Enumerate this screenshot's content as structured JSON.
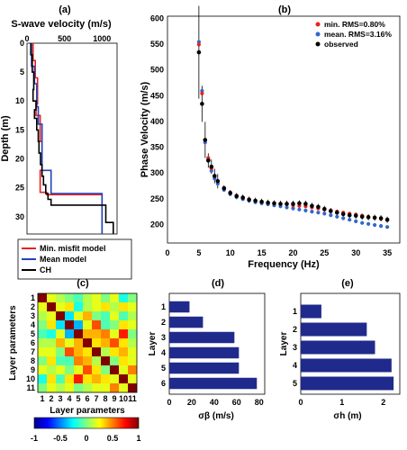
{
  "chart_data": [
    {
      "panel": "(a)",
      "type": "line",
      "title": "S-wave velocity (m/s)",
      "xlabel": "",
      "ylabel": "Depth (m)",
      "xlim": [
        0,
        1200
      ],
      "ylim": [
        0,
        33
      ],
      "xticks": [
        "0",
        "500",
        "1000"
      ],
      "yticks": [
        "0",
        "5",
        "10",
        "15",
        "20",
        "25",
        "30"
      ],
      "legend_position": "bottom",
      "series": [
        {
          "name": "Min. misfit model",
          "color": "#e8211f",
          "x": [
            80,
            80,
            110,
            110,
            140,
            140,
            120,
            120,
            175,
            175,
            200,
            200,
            175,
            175,
            260,
            260,
            1000,
            1000
          ],
          "y": [
            0,
            3,
            3,
            6,
            6,
            10.5,
            10.5,
            12.5,
            12.5,
            17,
            17,
            22,
            22,
            25.8,
            25.8,
            26.2,
            26.2,
            33
          ]
        },
        {
          "name": "Mean model",
          "color": "#2244bb",
          "x": [
            60,
            60,
            100,
            100,
            130,
            130,
            150,
            150,
            200,
            200,
            320,
            320,
            1000,
            1000
          ],
          "y": [
            0,
            4,
            4,
            7,
            7,
            11,
            11,
            14,
            14,
            22,
            22,
            26,
            26,
            33
          ]
        },
        {
          "name": "CH",
          "color": "#000000",
          "x": [
            50,
            50,
            70,
            70,
            90,
            90,
            80,
            80,
            120,
            120,
            100,
            100,
            130,
            130,
            150,
            150,
            160,
            160,
            180,
            180,
            200,
            200,
            220,
            220,
            250,
            250,
            280,
            280,
            320,
            320,
            1050,
            1050,
            1150,
            1150
          ],
          "y": [
            0,
            2,
            2,
            5,
            5,
            8,
            8,
            10,
            10,
            11.5,
            11.5,
            13,
            13,
            15,
            15,
            17,
            17,
            19,
            19,
            21,
            21,
            23,
            23,
            24.5,
            24.5,
            26,
            26,
            27,
            27,
            28,
            28,
            31,
            31,
            33
          ]
        }
      ]
    },
    {
      "panel": "(b)",
      "type": "scatter",
      "xlabel": "Frequency (Hz)",
      "ylabel": "Phase Velocity (m/s)",
      "xlim": [
        0,
        37
      ],
      "ylim": [
        160,
        600
      ],
      "xticks": [
        "0",
        "5",
        "10",
        "15",
        "20",
        "25",
        "30",
        "35"
      ],
      "yticks": [
        "200",
        "250",
        "300",
        "350",
        "400",
        "450",
        "500",
        "550",
        "600"
      ],
      "legend_position": "top-right",
      "x": [
        5,
        5.5,
        6,
        6.5,
        7,
        7.5,
        8,
        9,
        10,
        11,
        12,
        13,
        14,
        15,
        16,
        17,
        18,
        19,
        20,
        21,
        22,
        23,
        24,
        25,
        26,
        27,
        28,
        29,
        30,
        31,
        32,
        33,
        34,
        35
      ],
      "series": [
        {
          "name": "min. RMS=0.80%",
          "color": "#e8211f",
          "values": [
            545,
            450,
            360,
            325,
            305,
            290,
            280,
            267,
            258,
            252,
            248,
            245,
            242,
            240,
            238,
            237,
            236,
            235,
            233,
            232,
            231,
            229,
            227,
            225,
            223,
            221,
            219,
            217,
            215,
            213,
            211,
            209,
            207,
            206
          ]
        },
        {
          "name": "mean. RMS=3.16%",
          "color": "#3366cc",
          "values": [
            550,
            455,
            355,
            322,
            300,
            285,
            275,
            263,
            255,
            249,
            245,
            242,
            239,
            237,
            235,
            233,
            231,
            229,
            227,
            225,
            223,
            221,
            219,
            217,
            214,
            211,
            208,
            205,
            202,
            199,
            197,
            195,
            193,
            191
          ]
        },
        {
          "name": "observed",
          "color": "#000000",
          "values": [
            530,
            430,
            360,
            320,
            308,
            290,
            280,
            266,
            257,
            251,
            248,
            244,
            242,
            240,
            238,
            237,
            236,
            236,
            236,
            237,
            236,
            232,
            230,
            226,
            222,
            219,
            216,
            214,
            213,
            211,
            210,
            209,
            208,
            205
          ]
        }
      ]
    },
    {
      "panel": "(c)",
      "type": "heatmap",
      "xlabel": "Layer parameters",
      "ylabel": "Layer parameters",
      "xticks": [
        "1",
        "2",
        "3",
        "4",
        "5",
        "6",
        "7",
        "8",
        "9",
        "10",
        "11"
      ],
      "yticks": [
        "1",
        "2",
        "3",
        "4",
        "5",
        "6",
        "7",
        "8",
        "9",
        "10",
        "11"
      ],
      "colorbar_ticks": [
        "-1",
        "-0.5",
        "0",
        "0.5",
        "1"
      ],
      "zlim": [
        -1,
        1
      ],
      "values": [
        [
          1.0,
          0.2,
          0.1,
          0.0,
          -0.1,
          0.1,
          0.2,
          0.0,
          0.2,
          -0.2,
          0.0
        ],
        [
          0.2,
          1.0,
          0.2,
          0.3,
          -0.2,
          0.1,
          0.2,
          0.3,
          0.1,
          0.3,
          0.2
        ],
        [
          0.1,
          0.2,
          1.0,
          -0.3,
          0.2,
          0.4,
          0.0,
          -0.1,
          0.2,
          -0.1,
          0.1
        ],
        [
          0.0,
          0.3,
          -0.3,
          1.0,
          -0.4,
          0.2,
          0.6,
          -0.1,
          0.0,
          0.3,
          0.2
        ],
        [
          -0.1,
          -0.2,
          0.2,
          -0.4,
          1.0,
          0.4,
          0.4,
          0.5,
          0.2,
          0.7,
          0.0
        ],
        [
          0.1,
          0.1,
          0.4,
          0.2,
          0.4,
          1.0,
          0.3,
          0.4,
          0.6,
          0.3,
          0.1
        ],
        [
          0.2,
          0.2,
          0.0,
          0.6,
          0.4,
          0.3,
          1.0,
          0.1,
          0.3,
          0.4,
          0.2
        ],
        [
          0.0,
          0.3,
          -0.1,
          -0.1,
          0.5,
          0.4,
          0.1,
          1.0,
          0.0,
          0.3,
          0.2
        ],
        [
          0.2,
          0.1,
          0.2,
          0.0,
          0.2,
          0.6,
          0.3,
          0.0,
          1.0,
          0.2,
          0.5
        ],
        [
          -0.2,
          0.3,
          -0.1,
          0.3,
          0.7,
          0.3,
          0.4,
          0.3,
          0.2,
          1.0,
          0.2
        ],
        [
          0.0,
          0.2,
          0.1,
          0.2,
          0.0,
          0.1,
          0.2,
          0.2,
          0.5,
          0.2,
          1.0
        ]
      ]
    },
    {
      "panel": "(d)",
      "type": "bar",
      "orientation": "horizontal",
      "xlabel": "σβ (m/s)",
      "ylabel": "Layer",
      "xlim": [
        0,
        85
      ],
      "xticks": [
        "0",
        "20",
        "40",
        "60",
        "80"
      ],
      "categories": [
        "1",
        "2",
        "3",
        "4",
        "5",
        "6"
      ],
      "values": [
        18,
        30,
        58,
        62,
        62,
        78
      ],
      "color": "#202a8c"
    },
    {
      "panel": "(e)",
      "type": "bar",
      "orientation": "horizontal",
      "xlabel": "σh (m)",
      "ylabel": "Layer",
      "xlim": [
        0,
        2.4
      ],
      "xticks": [
        "0",
        "1",
        "2"
      ],
      "categories": [
        "1",
        "2",
        "3",
        "4",
        "5"
      ],
      "values": [
        0.5,
        1.6,
        1.8,
        2.2,
        2.25
      ],
      "color": "#202a8c"
    }
  ]
}
